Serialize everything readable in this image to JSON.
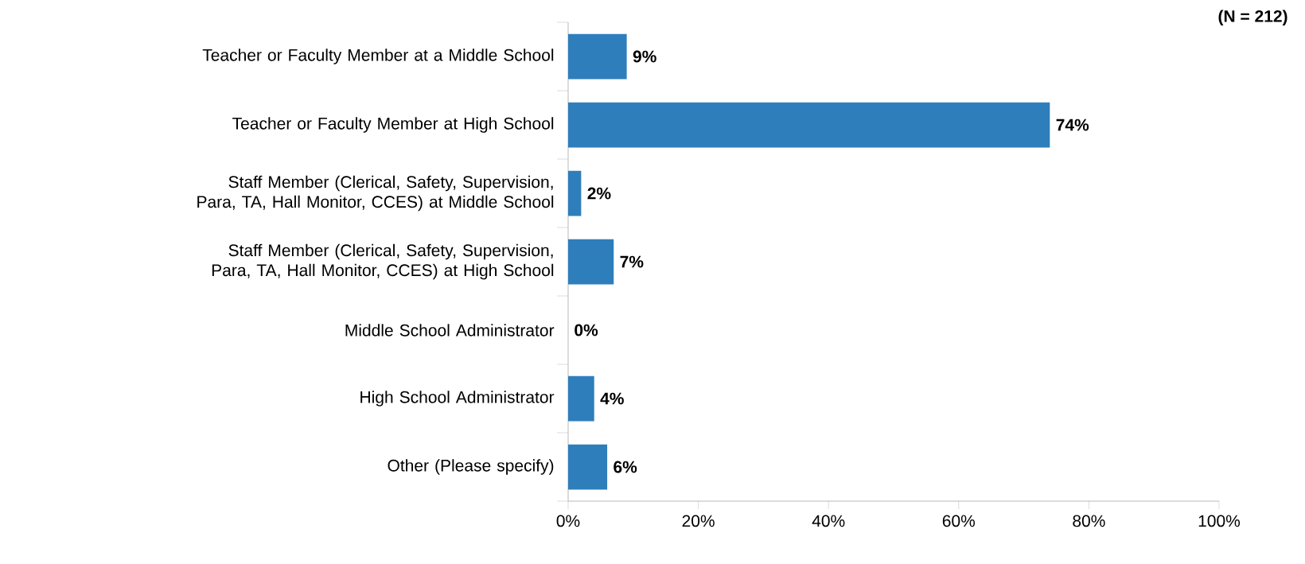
{
  "chart_data": {
    "type": "bar",
    "orientation": "horizontal",
    "categories": [
      "Teacher or Faculty Member at a Middle School",
      "Teacher or Faculty Member at High School",
      "Staff Member (Clerical, Safety, Supervision, Para, TA, Hall Monitor, CCES) at Middle School",
      "Staff Member (Clerical, Safety, Supervision, Para, TA, Hall Monitor, CCES) at High School",
      "Middle School Administrator",
      "High School Administrator",
      "Other (Please specify)"
    ],
    "values": [
      9,
      74,
      2,
      7,
      0,
      4,
      6
    ],
    "value_labels": [
      "9%",
      "74%",
      "2%",
      "7%",
      "0%",
      "4%",
      "6%"
    ],
    "color": "#2e7ebb",
    "xlim": [
      0,
      100
    ],
    "xticks": [
      {
        "value": 0,
        "label": "0%"
      },
      {
        "value": 20,
        "label": "20%"
      },
      {
        "value": 40,
        "label": "40%"
      },
      {
        "value": 60,
        "label": "60%"
      },
      {
        "value": 80,
        "label": "80%"
      },
      {
        "value": 100,
        "label": "100%"
      }
    ],
    "annotations": [
      "(N = 212)"
    ]
  }
}
